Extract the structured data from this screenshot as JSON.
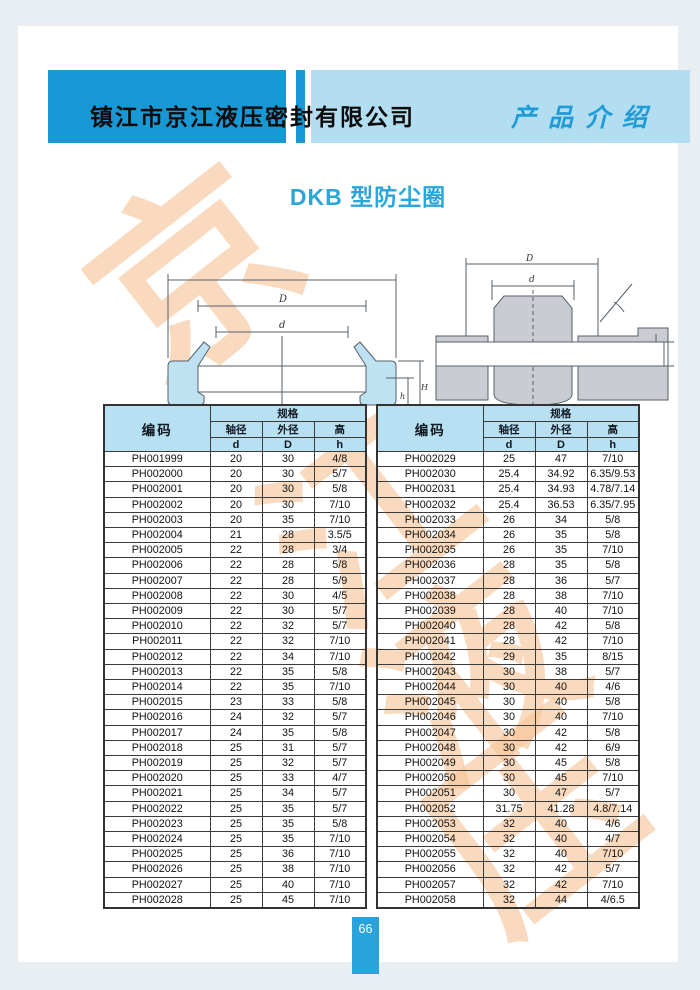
{
  "header": {
    "company": "镇江市京江液压密封有限公司",
    "section": "产品介绍"
  },
  "title": "DKB 型防尘圈",
  "watermark": {
    "chars": [
      "京",
      "江",
      "液",
      "压"
    ]
  },
  "diagrams": {
    "left": {
      "labels": {
        "D": "D",
        "d": "d",
        "h": "h",
        "H": "H"
      }
    },
    "right": {
      "labels": {
        "D": "D",
        "d": "d"
      }
    }
  },
  "table_headers": {
    "code": "编码",
    "spec": "规格",
    "shaft": "轴径",
    "outer": "外径",
    "height": "高",
    "d": "d",
    "D": "D",
    "h": "h"
  },
  "tables": [
    {
      "rows": [
        [
          "PH001999",
          "20",
          "30",
          "4/8"
        ],
        [
          "PH002000",
          "20",
          "30",
          "5/7"
        ],
        [
          "PH002001",
          "20",
          "30",
          "5/8"
        ],
        [
          "PH002002",
          "20",
          "30",
          "7/10"
        ],
        [
          "PH002003",
          "20",
          "35",
          "7/10"
        ],
        [
          "PH002004",
          "21",
          "28",
          "3.5/5"
        ],
        [
          "PH002005",
          "22",
          "28",
          "3/4"
        ],
        [
          "PH002006",
          "22",
          "28",
          "5/8"
        ],
        [
          "PH002007",
          "22",
          "28",
          "5/9"
        ],
        [
          "PH002008",
          "22",
          "30",
          "4/5"
        ],
        [
          "PH002009",
          "22",
          "30",
          "5/7"
        ],
        [
          "PH002010",
          "22",
          "32",
          "5/7"
        ],
        [
          "PH002011",
          "22",
          "32",
          "7/10"
        ],
        [
          "PH002012",
          "22",
          "34",
          "7/10"
        ],
        [
          "PH002013",
          "22",
          "35",
          "5/8"
        ],
        [
          "PH002014",
          "22",
          "35",
          "7/10"
        ],
        [
          "PH002015",
          "23",
          "33",
          "5/8"
        ],
        [
          "PH002016",
          "24",
          "32",
          "5/7"
        ],
        [
          "PH002017",
          "24",
          "35",
          "5/8"
        ],
        [
          "PH002018",
          "25",
          "31",
          "5/7"
        ],
        [
          "PH002019",
          "25",
          "32",
          "5/7"
        ],
        [
          "PH002020",
          "25",
          "33",
          "4/7"
        ],
        [
          "PH002021",
          "25",
          "34",
          "5/7"
        ],
        [
          "PH002022",
          "25",
          "35",
          "5/7"
        ],
        [
          "PH002023",
          "25",
          "35",
          "5/8"
        ],
        [
          "PH002024",
          "25",
          "35",
          "7/10"
        ],
        [
          "PH002025",
          "25",
          "36",
          "7/10"
        ],
        [
          "PH002026",
          "25",
          "38",
          "7/10"
        ],
        [
          "PH002027",
          "25",
          "40",
          "7/10"
        ],
        [
          "PH002028",
          "25",
          "45",
          "7/10"
        ]
      ]
    },
    {
      "rows": [
        [
          "PH002029",
          "25",
          "47",
          "7/10"
        ],
        [
          "PH002030",
          "25.4",
          "34.92",
          "6.35/9.53"
        ],
        [
          "PH002031",
          "25.4",
          "34.93",
          "4.78/7.14"
        ],
        [
          "PH002032",
          "25.4",
          "36.53",
          "6.35/7.95"
        ],
        [
          "PH002033",
          "26",
          "34",
          "5/8"
        ],
        [
          "PH002034",
          "26",
          "35",
          "5/8"
        ],
        [
          "PH002035",
          "26",
          "35",
          "7/10"
        ],
        [
          "PH002036",
          "28",
          "35",
          "5/8"
        ],
        [
          "PH002037",
          "28",
          "36",
          "5/7"
        ],
        [
          "PH002038",
          "28",
          "38",
          "7/10"
        ],
        [
          "PH002039",
          "28",
          "40",
          "7/10"
        ],
        [
          "PH002040",
          "28",
          "42",
          "5/8"
        ],
        [
          "PH002041",
          "28",
          "42",
          "7/10"
        ],
        [
          "PH002042",
          "29",
          "35",
          "8/15"
        ],
        [
          "PH002043",
          "30",
          "38",
          "5/7"
        ],
        [
          "PH002044",
          "30",
          "40",
          "4/6"
        ],
        [
          "PH002045",
          "30",
          "40",
          "5/8"
        ],
        [
          "PH002046",
          "30",
          "40",
          "7/10"
        ],
        [
          "PH002047",
          "30",
          "42",
          "5/8"
        ],
        [
          "PH002048",
          "30",
          "42",
          "6/9"
        ],
        [
          "PH002049",
          "30",
          "45",
          "5/8"
        ],
        [
          "PH002050",
          "30",
          "45",
          "7/10"
        ],
        [
          "PH002051",
          "30",
          "47",
          "5/7"
        ],
        [
          "PH002052",
          "31.75",
          "41.28",
          "4.8/7.14"
        ],
        [
          "PH002053",
          "32",
          "40",
          "4/6"
        ],
        [
          "PH002054",
          "32",
          "40",
          "4/7"
        ],
        [
          "PH002055",
          "32",
          "40",
          "7/10"
        ],
        [
          "PH002056",
          "32",
          "42",
          "5/7"
        ],
        [
          "PH002057",
          "32",
          "42",
          "7/10"
        ],
        [
          "PH002058",
          "32",
          "44",
          "4/6.5"
        ]
      ]
    }
  ],
  "page": {
    "number": "66"
  }
}
